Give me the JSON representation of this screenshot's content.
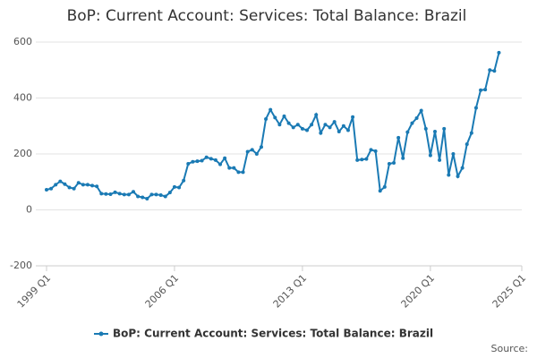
{
  "chart_data": {
    "type": "line",
    "title": "BoP: Current Account: Services: Total Balance: Brazil",
    "source": "Source:",
    "categories": [
      "1999 Q1",
      "1999 Q2",
      "1999 Q3",
      "1999 Q4",
      "2000 Q1",
      "2000 Q2",
      "2000 Q3",
      "2000 Q4",
      "2001 Q1",
      "2001 Q2",
      "2001 Q3",
      "2001 Q4",
      "2002 Q1",
      "2002 Q2",
      "2002 Q3",
      "2002 Q4",
      "2003 Q1",
      "2003 Q2",
      "2003 Q3",
      "2003 Q4",
      "2004 Q1",
      "2004 Q2",
      "2004 Q3",
      "2004 Q4",
      "2005 Q1",
      "2005 Q2",
      "2005 Q3",
      "2005 Q4",
      "2006 Q1",
      "2006 Q2",
      "2006 Q3",
      "2006 Q4",
      "2007 Q1",
      "2007 Q2",
      "2007 Q3",
      "2007 Q4",
      "2008 Q1",
      "2008 Q2",
      "2008 Q3",
      "2008 Q4",
      "2009 Q1",
      "2009 Q2",
      "2009 Q3",
      "2009 Q4",
      "2010 Q1",
      "2010 Q2",
      "2010 Q3",
      "2010 Q4",
      "2011 Q1",
      "2011 Q2",
      "2011 Q3",
      "2011 Q4",
      "2012 Q1",
      "2012 Q2",
      "2012 Q3",
      "2012 Q4",
      "2013 Q1",
      "2013 Q2",
      "2013 Q3",
      "2013 Q4",
      "2014 Q1",
      "2014 Q2",
      "2014 Q3",
      "2014 Q4",
      "2015 Q1",
      "2015 Q2",
      "2015 Q3",
      "2015 Q4",
      "2016 Q1",
      "2016 Q2",
      "2016 Q3",
      "2016 Q4",
      "2017 Q1",
      "2017 Q2",
      "2017 Q3",
      "2017 Q4",
      "2018 Q1",
      "2018 Q2",
      "2018 Q3",
      "2018 Q4",
      "2019 Q1",
      "2019 Q2",
      "2019 Q3",
      "2019 Q4",
      "2020 Q1",
      "2020 Q2",
      "2020 Q3",
      "2020 Q4",
      "2021 Q1",
      "2021 Q2",
      "2021 Q3",
      "2021 Q4",
      "2022 Q1",
      "2022 Q2",
      "2022 Q3",
      "2022 Q4",
      "2023 Q1",
      "2023 Q2",
      "2023 Q3",
      "2023 Q4"
    ],
    "series": [
      {
        "name": "BoP: Current Account: Services: Total Balance: Brazil",
        "color": "#1a7ab4",
        "values": [
          72,
          76,
          90,
          102,
          92,
          80,
          76,
          97,
          90,
          90,
          87,
          84,
          58,
          57,
          56,
          63,
          58,
          55,
          55,
          65,
          48,
          45,
          40,
          55,
          55,
          53,
          48,
          62,
          82,
          80,
          105,
          165,
          172,
          174,
          176,
          188,
          183,
          178,
          163,
          185,
          150,
          150,
          135,
          135,
          208,
          215,
          200,
          225,
          325,
          358,
          330,
          305,
          335,
          310,
          295,
          305,
          290,
          285,
          305,
          340,
          275,
          305,
          295,
          315,
          280,
          300,
          285,
          332,
          178,
          180,
          182,
          215,
          210,
          68,
          82,
          165,
          168,
          258,
          185,
          278,
          310,
          328,
          355,
          290,
          195,
          280,
          178,
          290,
          125,
          200,
          120,
          150,
          235,
          275,
          365,
          428,
          430,
          500,
          497,
          562
        ]
      }
    ],
    "xlim": [
      "1999 Q1",
      "2025 Q1"
    ],
    "xticks": [
      "1999 Q1",
      "2006 Q1",
      "2013 Q1",
      "2020 Q1",
      "2025 Q1"
    ],
    "ylim": [
      -200,
      600
    ],
    "yticks": [
      -200,
      0,
      200,
      400,
      600
    ],
    "grid": true
  }
}
